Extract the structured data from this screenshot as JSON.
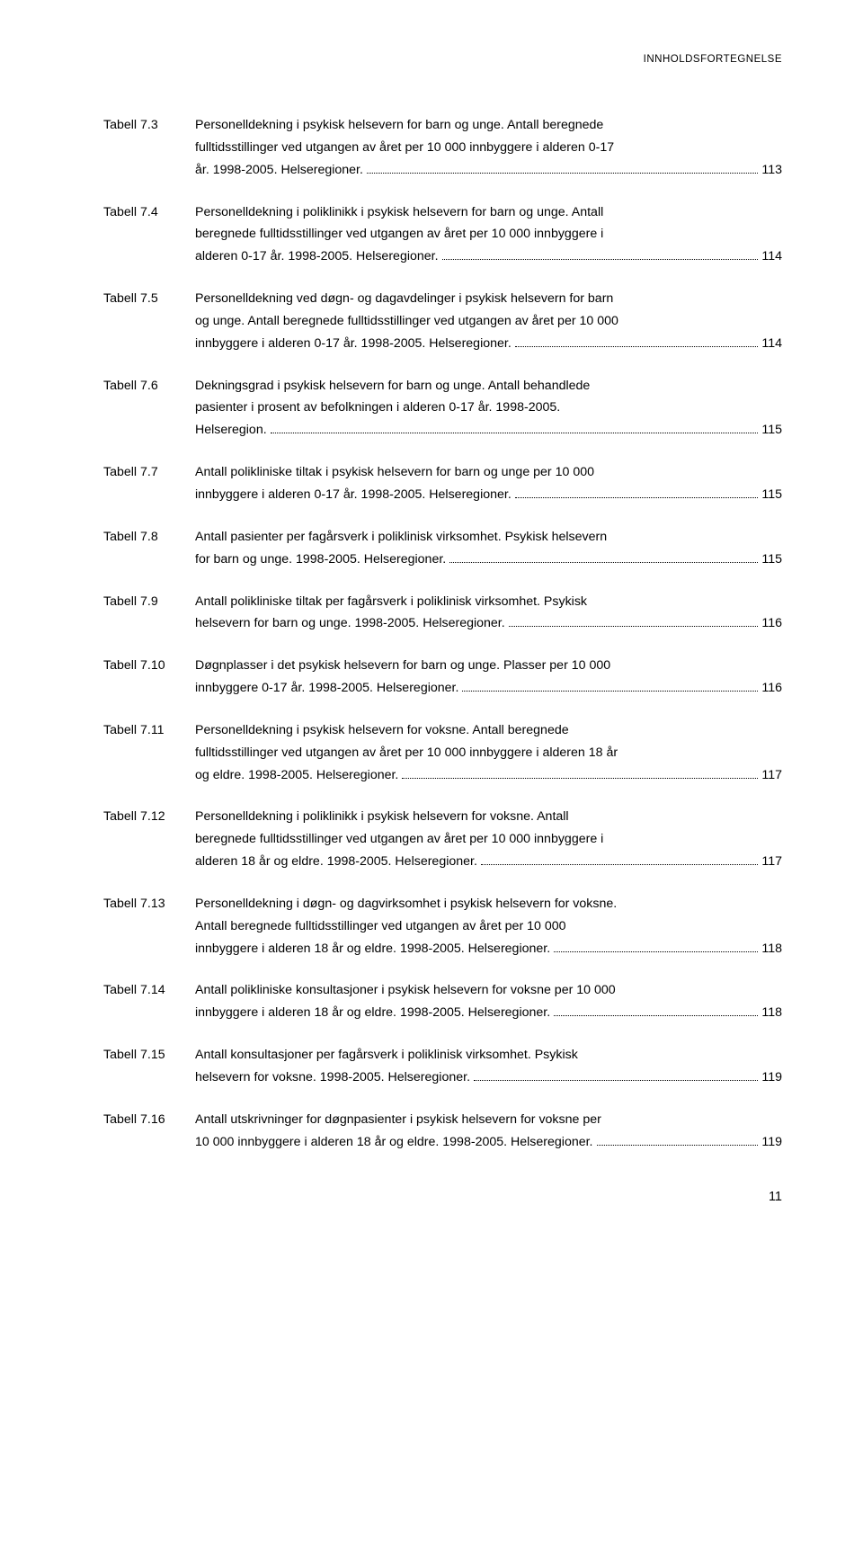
{
  "header": "INNHOLDSFORTEGNELSE",
  "entries": [
    {
      "label": "Tabell 7.3",
      "lines": [
        "Personelldekning i psykisk helsevern for barn og unge. Antall beregnede",
        "fulltidsstillinger ved utgangen av året per 10 000 innbyggere i alderen 0-17"
      ],
      "last": "år. 1998-2005. Helseregioner.",
      "page": "113"
    },
    {
      "label": "Tabell 7.4",
      "lines": [
        "Personelldekning i poliklinikk i psykisk helsevern for barn og unge. Antall",
        "beregnede fulltidsstillinger ved utgangen av året per 10 000 innbyggere i"
      ],
      "last": "alderen 0-17 år. 1998-2005. Helseregioner.",
      "page": "114"
    },
    {
      "label": "Tabell 7.5",
      "lines": [
        "Personelldekning ved døgn- og dagavdelinger i psykisk helsevern for barn",
        "og unge. Antall beregnede fulltidsstillinger ved utgangen av året per 10 000"
      ],
      "last": "innbyggere i alderen 0-17 år. 1998-2005. Helseregioner.",
      "page": "114"
    },
    {
      "label": "Tabell 7.6",
      "lines": [
        "Dekningsgrad i psykisk helsevern for barn og unge. Antall behandlede",
        "pasienter i prosent av befolkningen i alderen 0-17 år. 1998-2005."
      ],
      "last": "Helseregion.",
      "page": "115"
    },
    {
      "label": "Tabell 7.7",
      "lines": [
        "Antall polikliniske tiltak i psykisk helsevern for barn og unge per 10 000"
      ],
      "last": "innbyggere i alderen 0-17 år. 1998-2005. Helseregioner.",
      "page": "115"
    },
    {
      "label": "Tabell 7.8",
      "lines": [
        "Antall pasienter per fagårsverk i poliklinisk virksomhet. Psykisk helsevern"
      ],
      "last": "for barn og unge. 1998-2005. Helseregioner.",
      "page": "115"
    },
    {
      "label": "Tabell 7.9",
      "lines": [
        "Antall polikliniske tiltak per fagårsverk i poliklinisk virksomhet. Psykisk"
      ],
      "last": "helsevern for barn og unge. 1998-2005. Helseregioner.",
      "page": "116"
    },
    {
      "label": "Tabell 7.10",
      "lines": [
        "Døgnplasser i det psykisk helsevern for barn og unge. Plasser per 10 000"
      ],
      "last": "innbyggere 0-17 år. 1998-2005. Helseregioner. ",
      "page": "116"
    },
    {
      "label": "Tabell 7.11",
      "lines": [
        "Personelldekning i psykisk helsevern for voksne. Antall beregnede",
        "fulltidsstillinger ved utgangen av året per 10 000 innbyggere i alderen 18 år"
      ],
      "last": "og eldre. 1998-2005. Helseregioner.",
      "page": "117"
    },
    {
      "label": "Tabell 7.12",
      "lines": [
        "Personelldekning i poliklinikk i psykisk helsevern for voksne. Antall",
        "beregnede fulltidsstillinger ved utgangen av året per 10 000 innbyggere i"
      ],
      "last": "alderen 18 år og eldre. 1998-2005. Helseregioner. ",
      "page": "117"
    },
    {
      "label": "Tabell 7.13",
      "lines": [
        "Personelldekning i døgn- og dagvirksomhet i psykisk helsevern for voksne.",
        "Antall beregnede fulltidsstillinger ved utgangen av året per 10 000"
      ],
      "last": "innbyggere i alderen 18 år og eldre. 1998-2005. Helseregioner. ",
      "page": "118"
    },
    {
      "label": "Tabell 7.14",
      "lines": [
        "Antall polikliniske konsultasjoner i psykisk helsevern for voksne per 10 000"
      ],
      "last": "innbyggere i alderen 18 år og eldre. 1998-2005. Helseregioner. ",
      "page": "118"
    },
    {
      "label": "Tabell 7.15",
      "lines": [
        "Antall konsultasjoner per fagårsverk i poliklinisk virksomhet. Psykisk"
      ],
      "last": "helsevern for voksne. 1998-2005. Helseregioner. ",
      "page": "119"
    },
    {
      "label": "Tabell 7.16",
      "lines": [
        "Antall utskrivninger for døgnpasienter i psykisk helsevern for voksne per"
      ],
      "last": "10 000 innbyggere i alderen 18 år og eldre. 1998-2005. Helseregioner.",
      "page": "119"
    }
  ],
  "pageNumber": "11"
}
